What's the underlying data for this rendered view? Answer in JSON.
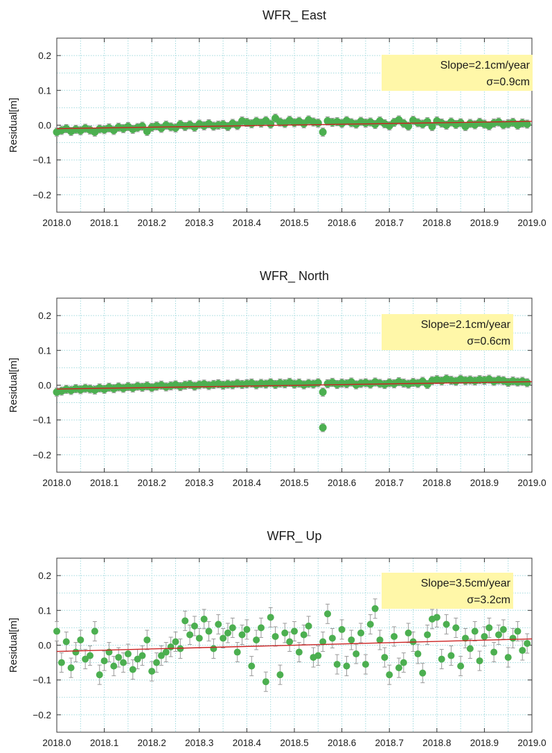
{
  "colors": {
    "marker": "#4caf50",
    "errorbar": "#999999",
    "trend": "#cc2222",
    "grid": "#9fd9dd",
    "annotation_bg": "#fff7a8"
  },
  "chart_data": [
    {
      "type": "scatter",
      "title": "WFR_ East",
      "ylabel": "Residual[m]",
      "xlabel": "",
      "xlim": [
        2018.0,
        2019.0
      ],
      "ylim": [
        -0.25,
        0.25
      ],
      "xticks": [
        "2018.0",
        "2018.1",
        "2018.2",
        "2018.3",
        "2018.4",
        "2018.5",
        "2018.6",
        "2018.7",
        "2018.8",
        "2018.9",
        "2019.0"
      ],
      "yticks": [
        "0.2",
        "0.1",
        "0.0",
        "−0.1",
        "−0.2"
      ],
      "grid": true,
      "annotation": {
        "slope": "Slope=2.1cm/year",
        "sigma": "σ=0.9cm"
      },
      "trend": {
        "x": [
          2018.0,
          2019.0
        ],
        "y": [
          -0.01,
          0.011
        ]
      },
      "series": [
        {
          "x": [
            2018.0,
            2018.01,
            2018.02,
            2018.03,
            2018.04,
            2018.05,
            2018.06,
            2018.07,
            2018.08,
            2018.09,
            2018.1,
            2018.11,
            2018.12,
            2018.13,
            2018.14,
            2018.15,
            2018.16,
            2018.17,
            2018.18,
            2018.19,
            2018.2,
            2018.21,
            2018.22,
            2018.23,
            2018.24,
            2018.25,
            2018.26,
            2018.27,
            2018.28,
            2018.29,
            2018.3,
            2018.31,
            2018.32,
            2018.33,
            2018.34,
            2018.35,
            2018.36,
            2018.37,
            2018.38,
            2018.39,
            2018.4,
            2018.41,
            2018.42,
            2018.43,
            2018.44,
            2018.45,
            2018.46,
            2018.47,
            2018.48,
            2018.49,
            2018.5,
            2018.51,
            2018.52,
            2018.53,
            2018.54,
            2018.55,
            2018.56,
            2018.57,
            2018.58,
            2018.59,
            2018.6,
            2018.61,
            2018.62,
            2018.63,
            2018.64,
            2018.65,
            2018.66,
            2018.67,
            2018.68,
            2018.69,
            2018.7,
            2018.71,
            2018.72,
            2018.73,
            2018.74,
            2018.75,
            2018.76,
            2018.77,
            2018.78,
            2018.79,
            2018.8,
            2018.81,
            2018.82,
            2018.83,
            2018.84,
            2018.85,
            2018.86,
            2018.87,
            2018.88,
            2018.89,
            2018.9,
            2018.91,
            2018.92,
            2018.93,
            2018.94,
            2018.95,
            2018.96,
            2018.97,
            2018.98,
            2018.99
          ],
          "y": [
            -0.02,
            -0.015,
            -0.01,
            -0.018,
            -0.012,
            -0.016,
            -0.009,
            -0.014,
            -0.02,
            -0.011,
            -0.013,
            -0.008,
            -0.015,
            -0.006,
            -0.01,
            -0.004,
            -0.012,
            -0.007,
            -0.003,
            -0.018,
            -0.006,
            -0.002,
            -0.009,
            0.0,
            -0.005,
            -0.008,
            0.002,
            -0.004,
            0.001,
            -0.006,
            0.003,
            -0.002,
            0.004,
            -0.003,
            0.0,
            0.002,
            -0.004,
            0.005,
            -0.001,
            0.012,
            0.008,
            0.004,
            0.011,
            0.006,
            0.013,
            0.003,
            0.02,
            0.009,
            0.005,
            0.014,
            0.007,
            0.011,
            0.004,
            0.015,
            0.009,
            0.006,
            -0.02,
            0.012,
            0.008,
            0.01,
            0.005,
            0.013,
            0.007,
            0.003,
            0.011,
            0.006,
            0.009,
            0.002,
            0.012,
            0.004,
            -0.002,
            0.008,
            0.015,
            0.005,
            -0.003,
            0.014,
            0.007,
            0.003,
            0.01,
            -0.004,
            0.012,
            0.006,
            0.0,
            0.009,
            0.002,
            0.007,
            -0.004,
            0.005,
            0.001,
            0.008,
            0.003,
            -0.002,
            0.006,
            0.009,
            0.001,
            0.004,
            0.008,
            0.0,
            0.006,
            0.003
          ]
        }
      ]
    },
    {
      "type": "scatter",
      "title": "WFR_ North",
      "ylabel": "Residual[m]",
      "xlabel": "",
      "xlim": [
        2018.0,
        2019.0
      ],
      "ylim": [
        -0.25,
        0.25
      ],
      "xticks": [
        "2018.0",
        "2018.1",
        "2018.2",
        "2018.3",
        "2018.4",
        "2018.5",
        "2018.6",
        "2018.7",
        "2018.8",
        "2018.9",
        "2019.0"
      ],
      "yticks": [
        "0.2",
        "0.1",
        "0.0",
        "−0.1",
        "−0.2"
      ],
      "grid": true,
      "annotation": {
        "slope": "Slope=2.1cm/year",
        "sigma": "σ=0.6cm"
      },
      "trend": {
        "x": [
          2018.0,
          2019.0
        ],
        "y": [
          -0.011,
          0.01
        ]
      },
      "series": [
        {
          "x": [
            2018.0,
            2018.01,
            2018.02,
            2018.03,
            2018.04,
            2018.05,
            2018.06,
            2018.07,
            2018.08,
            2018.09,
            2018.1,
            2018.11,
            2018.12,
            2018.13,
            2018.14,
            2018.15,
            2018.16,
            2018.17,
            2018.18,
            2018.19,
            2018.2,
            2018.21,
            2018.22,
            2018.23,
            2018.24,
            2018.25,
            2018.26,
            2018.27,
            2018.28,
            2018.29,
            2018.3,
            2018.31,
            2018.32,
            2018.33,
            2018.34,
            2018.35,
            2018.36,
            2018.37,
            2018.38,
            2018.39,
            2018.4,
            2018.41,
            2018.42,
            2018.43,
            2018.44,
            2018.45,
            2018.46,
            2018.47,
            2018.48,
            2018.49,
            2018.5,
            2018.51,
            2018.52,
            2018.53,
            2018.54,
            2018.55,
            2018.56,
            2018.56,
            2018.57,
            2018.58,
            2018.59,
            2018.6,
            2018.61,
            2018.62,
            2018.63,
            2018.64,
            2018.65,
            2018.66,
            2018.67,
            2018.68,
            2018.69,
            2018.7,
            2018.71,
            2018.72,
            2018.73,
            2018.74,
            2018.75,
            2018.76,
            2018.77,
            2018.78,
            2018.79,
            2018.8,
            2018.81,
            2018.82,
            2018.83,
            2018.84,
            2018.85,
            2018.86,
            2018.87,
            2018.88,
            2018.89,
            2018.9,
            2018.91,
            2018.92,
            2018.93,
            2018.94,
            2018.95,
            2018.96,
            2018.97,
            2018.98,
            2018.99
          ],
          "y": [
            -0.02,
            -0.017,
            -0.012,
            -0.015,
            -0.01,
            -0.013,
            -0.009,
            -0.011,
            -0.014,
            -0.008,
            -0.012,
            -0.006,
            -0.01,
            -0.005,
            -0.009,
            -0.004,
            -0.008,
            -0.003,
            -0.006,
            -0.002,
            -0.007,
            -0.003,
            0.0,
            -0.005,
            -0.002,
            0.001,
            -0.004,
            0.0,
            0.002,
            -0.003,
            0.001,
            0.003,
            -0.001,
            0.002,
            0.004,
            0.0,
            0.003,
            0.001,
            0.005,
            0.002,
            0.004,
            0.006,
            0.001,
            0.005,
            0.003,
            0.007,
            0.002,
            0.006,
            0.004,
            0.008,
            0.003,
            0.006,
            0.001,
            0.005,
            0.003,
            0.007,
            -0.02,
            -0.122,
            0.004,
            0.008,
            0.002,
            0.006,
            0.004,
            0.009,
            0.001,
            0.005,
            0.007,
            0.003,
            0.009,
            0.005,
            0.002,
            0.007,
            0.004,
            0.01,
            0.006,
            0.003,
            0.008,
            0.005,
            0.011,
            0.002,
            0.013,
            0.016,
            0.012,
            0.018,
            0.014,
            0.011,
            0.017,
            0.013,
            0.015,
            0.012,
            0.016,
            0.014,
            0.017,
            0.011,
            0.015,
            0.013,
            0.008,
            0.012,
            0.009,
            0.011,
            0.007
          ]
        }
      ]
    },
    {
      "type": "scatter",
      "title": "WFR_ Up",
      "ylabel": "Residual[m]",
      "xlabel": "",
      "xlim": [
        2018.0,
        2019.0
      ],
      "ylim": [
        -0.25,
        0.25
      ],
      "xticks": [
        "2018.0",
        "2018.1",
        "2018.2",
        "2018.3",
        "2018.4",
        "2018.5",
        "2018.6",
        "2018.7",
        "2018.8",
        "2018.9",
        "2019.0"
      ],
      "yticks": [
        "0.2",
        "0.1",
        "0.0",
        "−0.1",
        "−0.2"
      ],
      "grid": true,
      "annotation": {
        "slope": "Slope=3.5cm/year",
        "sigma": "σ=3.2cm"
      },
      "trend": {
        "x": [
          2018.0,
          2019.0
        ],
        "y": [
          -0.018,
          0.018
        ]
      },
      "series": [
        {
          "x": [
            2018.0,
            2018.01,
            2018.02,
            2018.03,
            2018.04,
            2018.05,
            2018.06,
            2018.07,
            2018.08,
            2018.09,
            2018.1,
            2018.11,
            2018.12,
            2018.13,
            2018.14,
            2018.15,
            2018.16,
            2018.17,
            2018.18,
            2018.19,
            2018.2,
            2018.21,
            2018.22,
            2018.23,
            2018.24,
            2018.25,
            2018.26,
            2018.27,
            2018.28,
            2018.29,
            2018.3,
            2018.31,
            2018.32,
            2018.33,
            2018.34,
            2018.35,
            2018.36,
            2018.37,
            2018.38,
            2018.39,
            2018.4,
            2018.41,
            2018.42,
            2018.43,
            2018.44,
            2018.45,
            2018.46,
            2018.47,
            2018.48,
            2018.49,
            2018.5,
            2018.51,
            2018.52,
            2018.53,
            2018.54,
            2018.55,
            2018.56,
            2018.57,
            2018.58,
            2018.59,
            2018.6,
            2018.61,
            2018.62,
            2018.63,
            2018.64,
            2018.65,
            2018.66,
            2018.67,
            2018.68,
            2018.69,
            2018.7,
            2018.71,
            2018.72,
            2018.73,
            2018.74,
            2018.75,
            2018.76,
            2018.77,
            2018.78,
            2018.79,
            2018.8,
            2018.81,
            2018.82,
            2018.83,
            2018.84,
            2018.85,
            2018.86,
            2018.87,
            2018.88,
            2018.89,
            2018.9,
            2018.91,
            2018.92,
            2018.93,
            2018.94,
            2018.95,
            2018.96,
            2018.97,
            2018.98,
            2018.99
          ],
          "y": [
            0.04,
            -0.05,
            0.01,
            -0.065,
            -0.02,
            0.015,
            -0.04,
            -0.03,
            0.04,
            -0.085,
            -0.045,
            -0.02,
            -0.06,
            -0.035,
            -0.05,
            -0.025,
            -0.07,
            -0.04,
            -0.03,
            0.015,
            -0.075,
            -0.05,
            -0.03,
            -0.02,
            -0.005,
            0.01,
            -0.01,
            0.07,
            0.03,
            0.055,
            0.02,
            0.075,
            0.04,
            -0.01,
            0.06,
            0.02,
            0.035,
            0.05,
            -0.02,
            0.03,
            0.045,
            -0.06,
            0.015,
            0.05,
            -0.105,
            0.08,
            0.025,
            -0.085,
            0.035,
            0.01,
            0.04,
            -0.02,
            0.03,
            0.055,
            -0.035,
            -0.03,
            0.01,
            0.09,
            0.02,
            -0.055,
            0.045,
            -0.06,
            0.015,
            -0.025,
            0.035,
            -0.055,
            0.06,
            0.105,
            0.015,
            -0.035,
            -0.085,
            0.025,
            -0.065,
            -0.05,
            0.035,
            0.01,
            -0.025,
            -0.08,
            0.03,
            0.075,
            0.08,
            -0.04,
            0.06,
            -0.03,
            0.05,
            -0.06,
            0.02,
            -0.01,
            0.04,
            -0.045,
            0.025,
            0.05,
            -0.02,
            0.03,
            0.045,
            -0.035,
            0.02,
            0.04,
            -0.015,
            0.005
          ]
        }
      ]
    }
  ]
}
